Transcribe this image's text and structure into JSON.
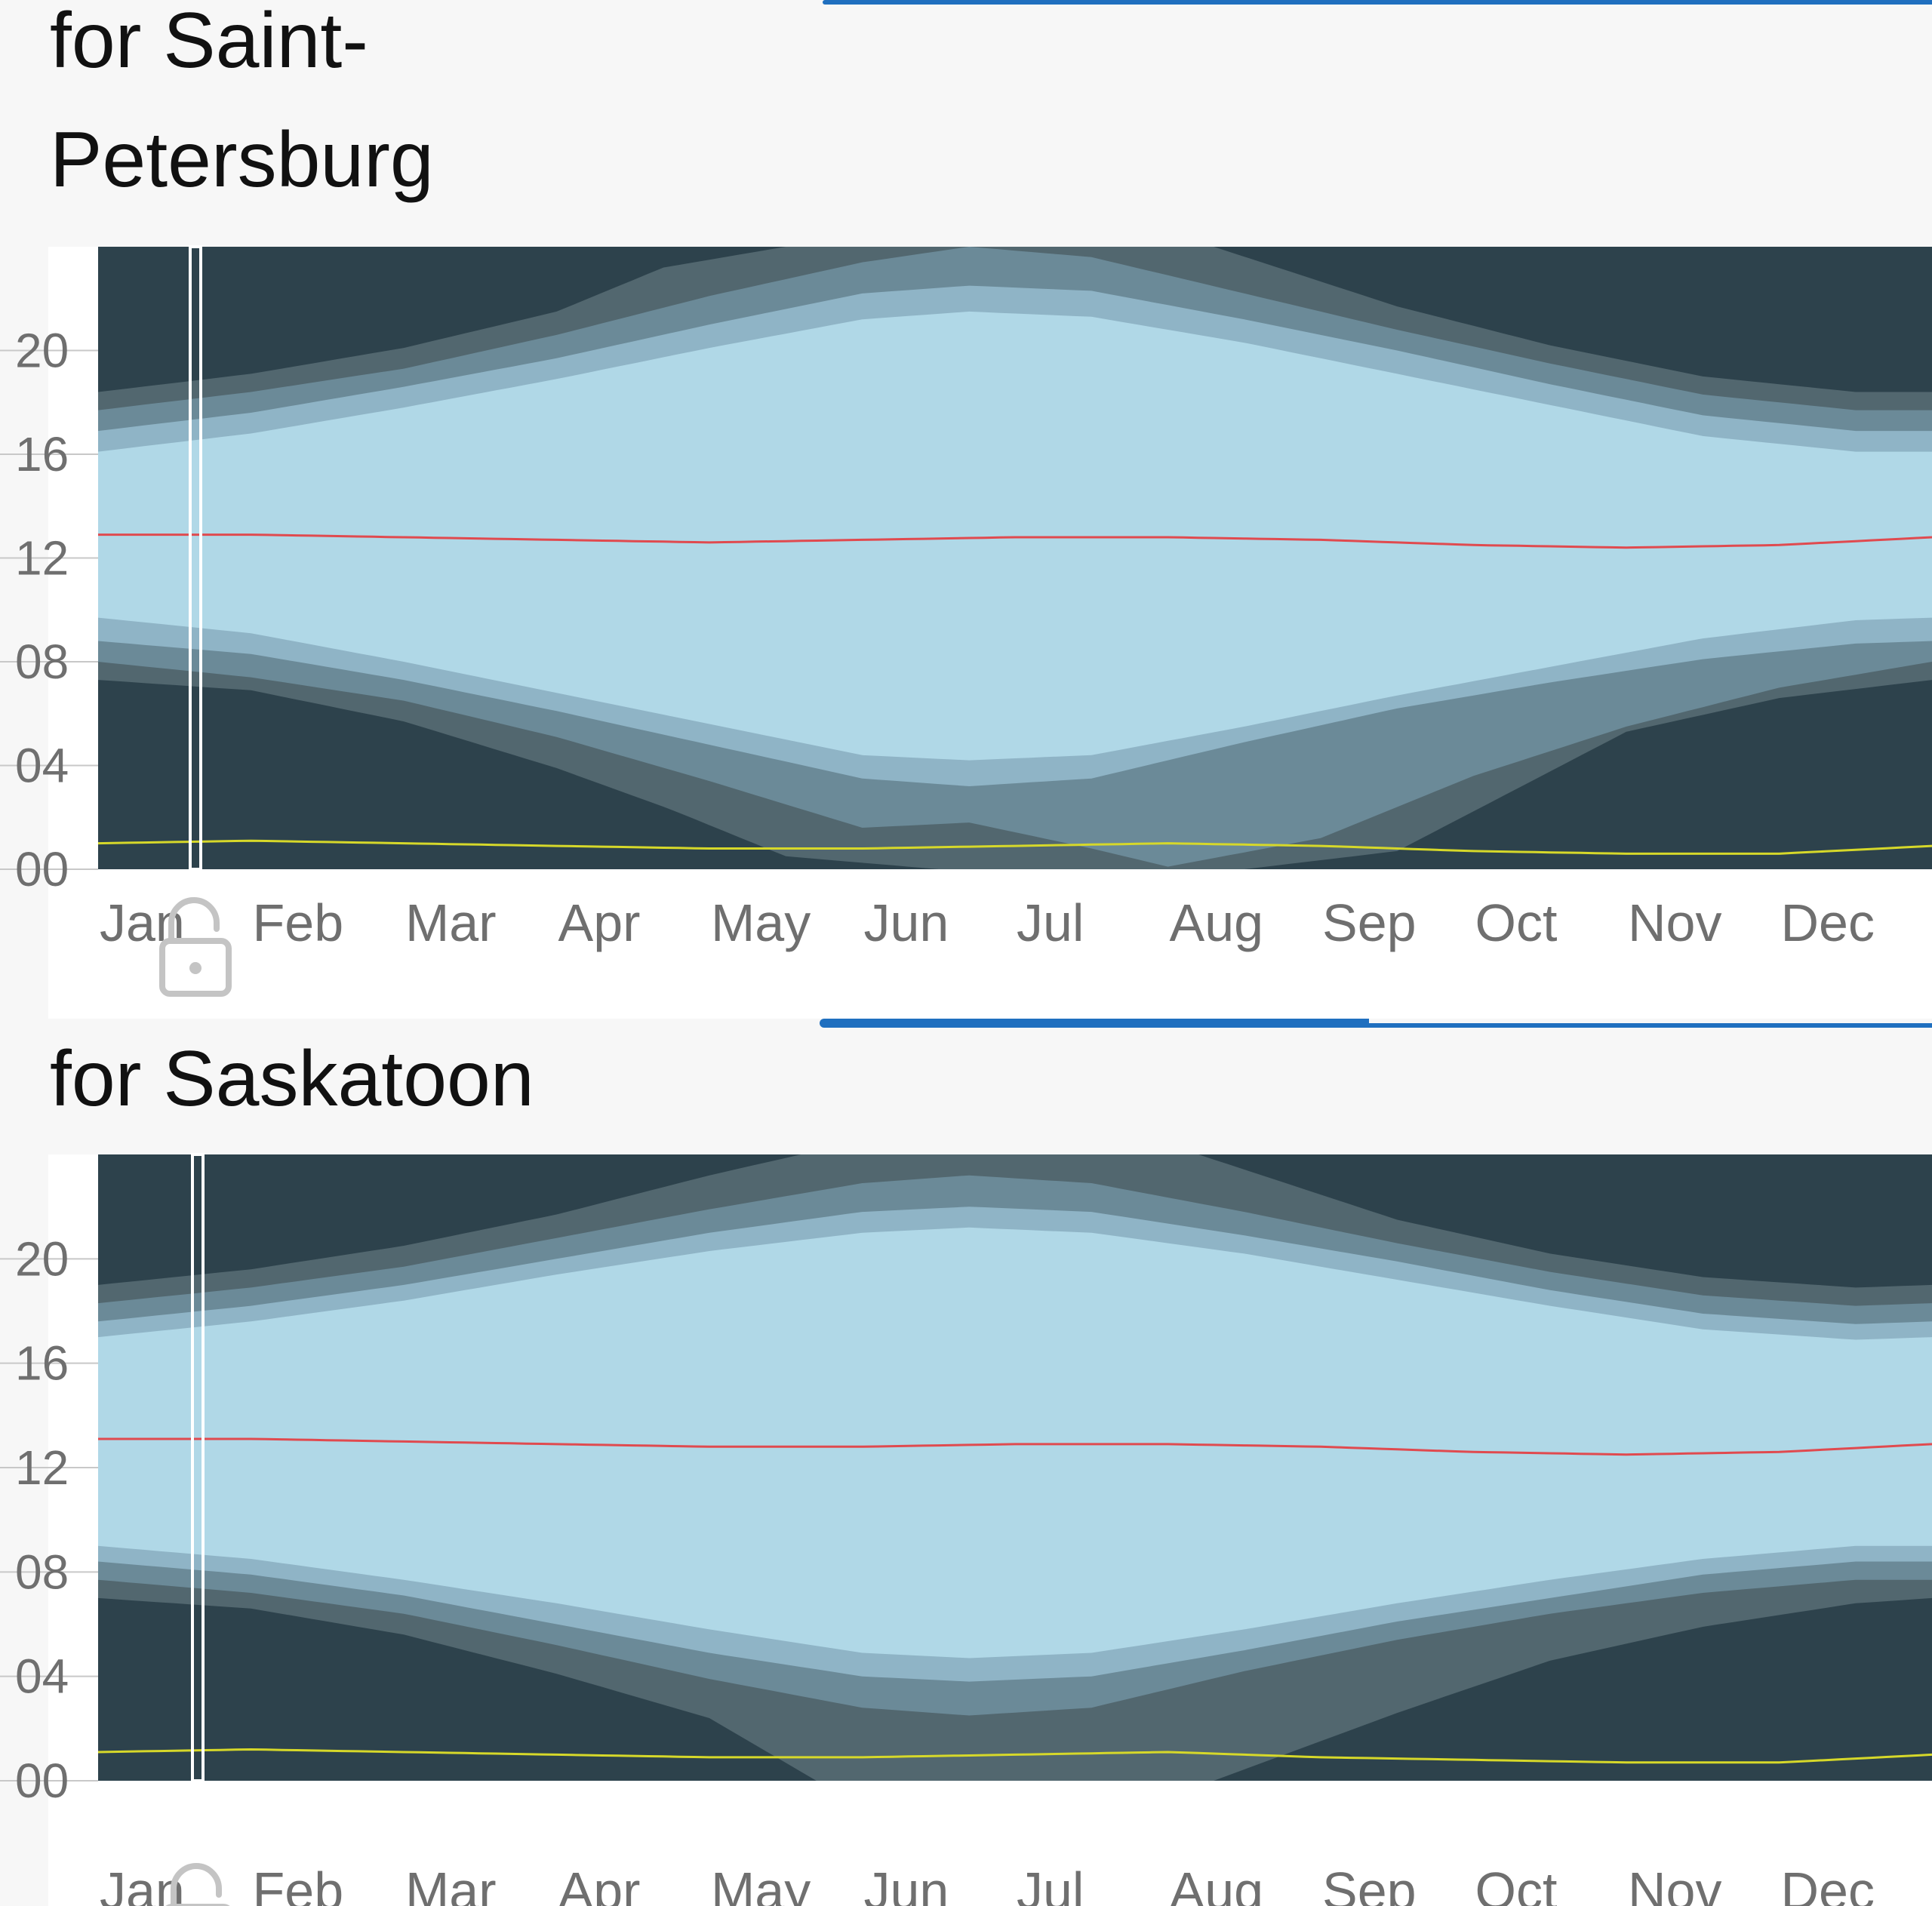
{
  "colors": {
    "night": "#2d424c",
    "astronomical_twilight": "#52676f",
    "nautical_twilight": "#6b8a98",
    "civil_twilight": "#8fb4c6",
    "daylight": "#b0d8e7",
    "solar_noon_line": "#e04a4f",
    "solar_midnight_line": "#d6d82a",
    "accent": "#1f6fbf",
    "tick_text": "#6f6f6f"
  },
  "icons": {
    "lock": "unlocked-padlock-icon"
  },
  "charts": [
    {
      "title": "for Saint-Petersburg",
      "title_lines": [
        "for Saint-",
        "Petersburg"
      ]
    },
    {
      "title": "for Saskatoon",
      "title_lines": [
        "for Saskatoon"
      ]
    }
  ],
  "chart_data": [
    {
      "type": "area",
      "title": "for Saint-Petersburg",
      "x": [
        "Jan",
        "Feb",
        "Mar",
        "Apr",
        "May",
        "Jun",
        "Jul",
        "Aug",
        "Sep",
        "Oct",
        "Nov",
        "Dec"
      ],
      "x_range": [
        0,
        12
      ],
      "y_ticks": [
        "00",
        "04",
        "08",
        "12",
        "16",
        "20"
      ],
      "ylim": [
        0,
        24
      ],
      "band_colors": [
        "night",
        "astronomical_twilight",
        "nautical_twilight",
        "civil_twilight",
        "daylight"
      ],
      "series": [
        {
          "name": "",
          "role": "astronomical_dawn",
          "x": [
            0,
            1,
            2,
            3,
            3.75,
            4.5,
            5.5,
            6.5,
            7.5,
            8.5,
            10,
            11,
            12
          ],
          "y": [
            7.3,
            6.9,
            5.7,
            3.9,
            2.3,
            0.5,
            0,
            0,
            0,
            0.7,
            5.3,
            6.6,
            7.3
          ]
        },
        {
          "name": "",
          "role": "nautical_dawn",
          "x": [
            0,
            1,
            2,
            3,
            4,
            5,
            5.7,
            6.5,
            7,
            8,
            9,
            10,
            11,
            12
          ],
          "y": [
            8.0,
            7.4,
            6.5,
            5.1,
            3.4,
            1.6,
            1.8,
            0.8,
            0.1,
            1.2,
            3.6,
            5.5,
            7.0,
            8.0
          ]
        },
        {
          "name": "",
          "role": "civil_dawn",
          "x": [
            0,
            1,
            2,
            3,
            4,
            5,
            5.7,
            6.5,
            7.5,
            8.5,
            9.5,
            10.5,
            11.5,
            12
          ],
          "y": [
            8.8,
            8.3,
            7.3,
            6.1,
            4.8,
            3.5,
            3.2,
            3.5,
            4.9,
            6.2,
            7.2,
            8.1,
            8.7,
            8.8
          ]
        },
        {
          "name": "",
          "role": "sunrise",
          "x": [
            0,
            1,
            2,
            3,
            4,
            5,
            5.7,
            6.5,
            7.5,
            8.5,
            9.5,
            10.5,
            11.5,
            12
          ],
          "y": [
            9.7,
            9.1,
            8.0,
            6.8,
            5.6,
            4.4,
            4.2,
            4.4,
            5.5,
            6.7,
            7.8,
            8.9,
            9.6,
            9.7
          ]
        },
        {
          "name": "",
          "role": "solar_noon",
          "x": [
            0,
            1,
            2,
            3,
            4,
            5,
            6,
            7,
            8,
            9,
            10,
            11,
            12
          ],
          "y": [
            12.9,
            12.9,
            12.8,
            12.7,
            12.6,
            12.7,
            12.8,
            12.8,
            12.7,
            12.5,
            12.4,
            12.5,
            12.8
          ]
        },
        {
          "name": "",
          "role": "sunset",
          "x": [
            0,
            1,
            2,
            3,
            4,
            5,
            5.7,
            6.5,
            7.5,
            8.5,
            9.5,
            10.5,
            11.5,
            12
          ],
          "y": [
            16.1,
            16.8,
            17.8,
            18.9,
            20.1,
            21.2,
            21.5,
            21.3,
            20.3,
            19.1,
            17.9,
            16.7,
            16.1,
            16.1
          ]
        },
        {
          "name": "",
          "role": "civil_dusk",
          "x": [
            0,
            1,
            2,
            3,
            4,
            5,
            5.7,
            6.5,
            7.5,
            8.5,
            9.5,
            10.5,
            11.5,
            12
          ],
          "y": [
            16.9,
            17.6,
            18.6,
            19.7,
            21.0,
            22.2,
            22.5,
            22.3,
            21.2,
            20.0,
            18.7,
            17.5,
            16.9,
            16.9
          ]
        },
        {
          "name": "",
          "role": "nautical_dusk",
          "x": [
            0,
            1,
            2,
            3,
            4,
            5,
            5.7,
            6.5,
            7.5,
            8.5,
            9.5,
            10.5,
            11.5,
            12
          ],
          "y": [
            17.7,
            18.4,
            19.3,
            20.6,
            22.1,
            23.4,
            24,
            23.6,
            22.2,
            20.8,
            19.5,
            18.3,
            17.7,
            17.7
          ]
        },
        {
          "name": "",
          "role": "astronomical_dusk",
          "x": [
            0,
            1,
            2,
            3,
            3.7,
            4.5,
            5.5,
            6.5,
            7.3,
            8.5,
            9.5,
            10.5,
            11.5,
            12
          ],
          "y": [
            18.4,
            19.1,
            20.1,
            21.5,
            23.2,
            24,
            24,
            24,
            24,
            21.7,
            20.2,
            19.0,
            18.4,
            18.4
          ]
        },
        {
          "name": "",
          "role": "solar_midnight",
          "x": [
            0,
            1,
            2,
            3,
            4,
            5,
            6,
            7,
            8,
            9,
            10,
            11,
            12
          ],
          "y": [
            1.0,
            1.1,
            1.0,
            0.9,
            0.8,
            0.8,
            0.9,
            1.0,
            0.9,
            0.7,
            0.6,
            0.6,
            0.9
          ]
        }
      ]
    },
    {
      "type": "area",
      "title": "for Saskatoon",
      "x": [
        "Jan",
        "Feb",
        "Mar",
        "Apr",
        "May",
        "Jun",
        "Jul",
        "Aug",
        "Sep",
        "Oct",
        "Nov",
        "Dec"
      ],
      "x_range": [
        0,
        12
      ],
      "y_ticks": [
        "00",
        "04",
        "08",
        "12",
        "16",
        "20"
      ],
      "ylim": [
        0,
        24
      ],
      "band_colors": [
        "night",
        "astronomical_twilight",
        "nautical_twilight",
        "civil_twilight",
        "daylight"
      ],
      "series": [
        {
          "name": "",
          "role": "astronomical_dawn",
          "x": [
            0,
            1,
            2,
            3,
            4,
            4.7,
            5.5,
            6.3,
            7.3,
            8.5,
            9.5,
            10.5,
            11.5,
            12
          ],
          "y": [
            7.0,
            6.6,
            5.6,
            4.1,
            2.4,
            0,
            0,
            0,
            0,
            2.6,
            4.6,
            5.9,
            6.8,
            7.0
          ]
        },
        {
          "name": "",
          "role": "nautical_dawn",
          "x": [
            0,
            1,
            2,
            3,
            4,
            5,
            5.7,
            6.5,
            7.5,
            8.5,
            9.5,
            10.5,
            11.5,
            12
          ],
          "y": [
            7.7,
            7.2,
            6.4,
            5.2,
            3.9,
            2.8,
            2.5,
            2.8,
            4.2,
            5.4,
            6.4,
            7.2,
            7.7,
            7.7
          ]
        },
        {
          "name": "",
          "role": "civil_dawn",
          "x": [
            0,
            1,
            2,
            3,
            4,
            5,
            5.7,
            6.5,
            7.5,
            8.5,
            9.5,
            10.5,
            11.5,
            12
          ],
          "y": [
            8.4,
            7.9,
            7.1,
            6.0,
            4.9,
            4.0,
            3.8,
            4.0,
            5.0,
            6.1,
            7.0,
            7.9,
            8.4,
            8.4
          ]
        },
        {
          "name": "",
          "role": "sunrise",
          "x": [
            0,
            1,
            2,
            3,
            4,
            5,
            5.7,
            6.5,
            7.5,
            8.5,
            9.5,
            10.5,
            11.5,
            12
          ],
          "y": [
            9.0,
            8.5,
            7.7,
            6.8,
            5.8,
            4.9,
            4.7,
            4.9,
            5.8,
            6.8,
            7.7,
            8.5,
            9.0,
            9.0
          ]
        },
        {
          "name": "",
          "role": "solar_noon",
          "x": [
            0,
            1,
            2,
            3,
            4,
            5,
            6,
            7,
            8,
            9,
            10,
            11,
            12
          ],
          "y": [
            13.1,
            13.1,
            13.0,
            12.9,
            12.8,
            12.8,
            12.9,
            12.9,
            12.8,
            12.6,
            12.5,
            12.6,
            12.9
          ]
        },
        {
          "name": "",
          "role": "sunset",
          "x": [
            0,
            1,
            2,
            3,
            4,
            5,
            5.7,
            6.5,
            7.5,
            8.5,
            9.5,
            10.5,
            11.5,
            12
          ],
          "y": [
            17.0,
            17.6,
            18.4,
            19.4,
            20.3,
            21.0,
            21.2,
            21.0,
            20.2,
            19.2,
            18.2,
            17.3,
            16.9,
            17.0
          ]
        },
        {
          "name": "",
          "role": "civil_dusk",
          "x": [
            0,
            1,
            2,
            3,
            4,
            5,
            5.7,
            6.5,
            7.5,
            8.5,
            9.5,
            10.5,
            11.5,
            12
          ],
          "y": [
            17.6,
            18.2,
            19.0,
            20.0,
            21.0,
            21.8,
            22.0,
            21.8,
            20.9,
            19.9,
            18.8,
            17.9,
            17.5,
            17.6
          ]
        },
        {
          "name": "",
          "role": "nautical_dusk",
          "x": [
            0,
            1,
            2,
            3,
            4,
            5,
            5.7,
            6.5,
            7.5,
            8.5,
            9.5,
            10.5,
            11.5,
            12
          ],
          "y": [
            18.3,
            18.9,
            19.7,
            20.8,
            21.9,
            22.9,
            23.2,
            22.9,
            21.8,
            20.6,
            19.5,
            18.6,
            18.2,
            18.3
          ]
        },
        {
          "name": "",
          "role": "astronomical_dusk",
          "x": [
            0,
            1,
            2,
            3,
            4,
            4.6,
            5.5,
            6.3,
            7.2,
            8.5,
            9.5,
            10.5,
            11.5,
            12
          ],
          "y": [
            19.0,
            19.6,
            20.5,
            21.7,
            23.2,
            24,
            24,
            24,
            24,
            21.5,
            20.2,
            19.3,
            18.9,
            19.0
          ]
        },
        {
          "name": "",
          "role": "solar_midnight",
          "x": [
            0,
            1,
            2,
            3,
            4,
            5,
            6,
            7,
            8,
            9,
            10,
            11,
            12
          ],
          "y": [
            1.1,
            1.2,
            1.1,
            1.0,
            0.9,
            0.9,
            1.0,
            1.1,
            0.9,
            0.8,
            0.7,
            0.7,
            1.0
          ]
        }
      ]
    }
  ]
}
